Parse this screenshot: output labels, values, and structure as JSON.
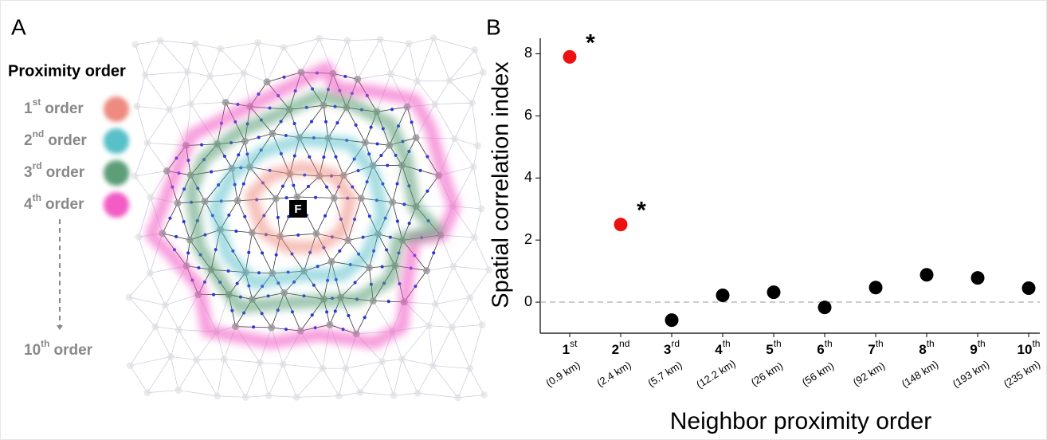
{
  "panel_a": {
    "label": "A",
    "legend_title": "Proximity order",
    "legend": [
      {
        "number": "1",
        "suffix": "st",
        "word": "order",
        "color": "#ee8a80"
      },
      {
        "number": "2",
        "suffix": "nd",
        "word": "order",
        "color": "#58c0c8"
      },
      {
        "number": "3",
        "suffix": "rd",
        "word": "order",
        "color": "#5c9e78"
      },
      {
        "number": "4",
        "suffix": "th",
        "word": "order",
        "color": "#f25cc4"
      }
    ],
    "last": {
      "number": "10",
      "suffix": "th",
      "word": "order"
    },
    "focal_label": "F"
  },
  "chart_data": {
    "type": "scatter",
    "panel_label": "B",
    "xlabel": "Neighbor proximity order",
    "ylabel": "Spatial correlation index",
    "categories": [
      "1",
      "2",
      "3",
      "4",
      "5",
      "6",
      "7",
      "8",
      "9",
      "10"
    ],
    "category_suffixes": [
      "st",
      "nd",
      "rd",
      "th",
      "th",
      "th",
      "th",
      "th",
      "th",
      "th"
    ],
    "category_distances": [
      "(0.9 km)",
      "(2.4 km)",
      "(5.7 km)",
      "(12.2 km)",
      "(26 km)",
      "(56 km)",
      "(92 km)",
      "(148 km)",
      "(193 km)",
      "(235 km)"
    ],
    "values": [
      7.9,
      2.5,
      -0.58,
      0.22,
      0.32,
      -0.17,
      0.47,
      0.88,
      0.78,
      0.45
    ],
    "colors": [
      "#ee1111",
      "#ee1111",
      "#000000",
      "#000000",
      "#000000",
      "#000000",
      "#000000",
      "#000000",
      "#000000",
      "#000000"
    ],
    "point_labels": [
      "*",
      "*",
      null,
      null,
      null,
      null,
      null,
      null,
      null,
      null
    ],
    "ylim": [
      -1,
      8.5
    ],
    "yticks": [
      0,
      2,
      4,
      6,
      8
    ],
    "reference_line": 0
  }
}
